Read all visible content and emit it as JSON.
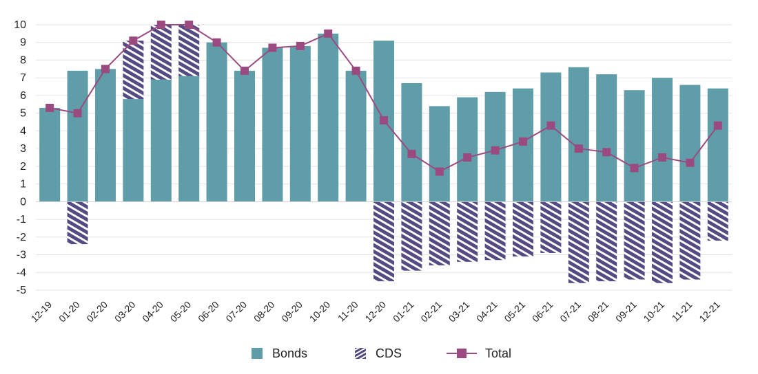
{
  "chart_data": {
    "type": "bar",
    "title": "",
    "xlabel": "",
    "ylabel": "",
    "ylim": [
      -5,
      10
    ],
    "yticks": [
      10,
      9,
      8,
      7,
      6,
      5,
      4,
      3,
      2,
      1,
      0,
      -1,
      -2,
      -3,
      -4,
      -5
    ],
    "grid": true,
    "legend_position": "bottom",
    "categories": [
      "12-19",
      "01-20",
      "02-20",
      "03-20",
      "04-20",
      "05-20",
      "06-20",
      "07-20",
      "08-20",
      "09-20",
      "10-20",
      "11-20",
      "12-20",
      "01-21",
      "02-21",
      "03-21",
      "04-21",
      "05-21",
      "06-21",
      "07-21",
      "08-21",
      "09-21",
      "10-21",
      "11-21",
      "12-21"
    ],
    "series": [
      {
        "name": "Bonds",
        "kind": "bar",
        "color": "#5f9ea9",
        "values": [
          5.3,
          7.4,
          7.5,
          5.8,
          6.9,
          7.1,
          9.0,
          7.4,
          8.7,
          8.8,
          9.5,
          7.4,
          9.1,
          6.7,
          5.4,
          5.9,
          6.2,
          6.4,
          7.3,
          7.6,
          7.2,
          6.3,
          7.0,
          6.6,
          6.4
        ]
      },
      {
        "name": "CDS",
        "kind": "hatched-bar",
        "color": "#564a82",
        "values": [
          0,
          -2.4,
          0,
          3.3,
          3.1,
          2.9,
          0,
          0,
          0,
          0,
          0,
          0,
          -4.5,
          -3.9,
          -3.6,
          -3.4,
          -3.3,
          -3.1,
          -2.9,
          -4.6,
          -4.5,
          -4.4,
          -4.6,
          -4.4,
          -2.2
        ]
      },
      {
        "name": "Total",
        "kind": "line",
        "color": "#9b4a80",
        "values": [
          5.3,
          5.0,
          7.5,
          9.1,
          10.0,
          10.0,
          9.0,
          7.4,
          8.7,
          8.8,
          9.5,
          7.4,
          4.6,
          2.7,
          1.7,
          2.5,
          2.9,
          3.4,
          4.3,
          3.0,
          2.8,
          1.9,
          2.5,
          2.2,
          4.3
        ]
      }
    ]
  },
  "legend": {
    "bonds_label": "Bonds",
    "cds_label": "CDS",
    "total_label": "Total"
  }
}
